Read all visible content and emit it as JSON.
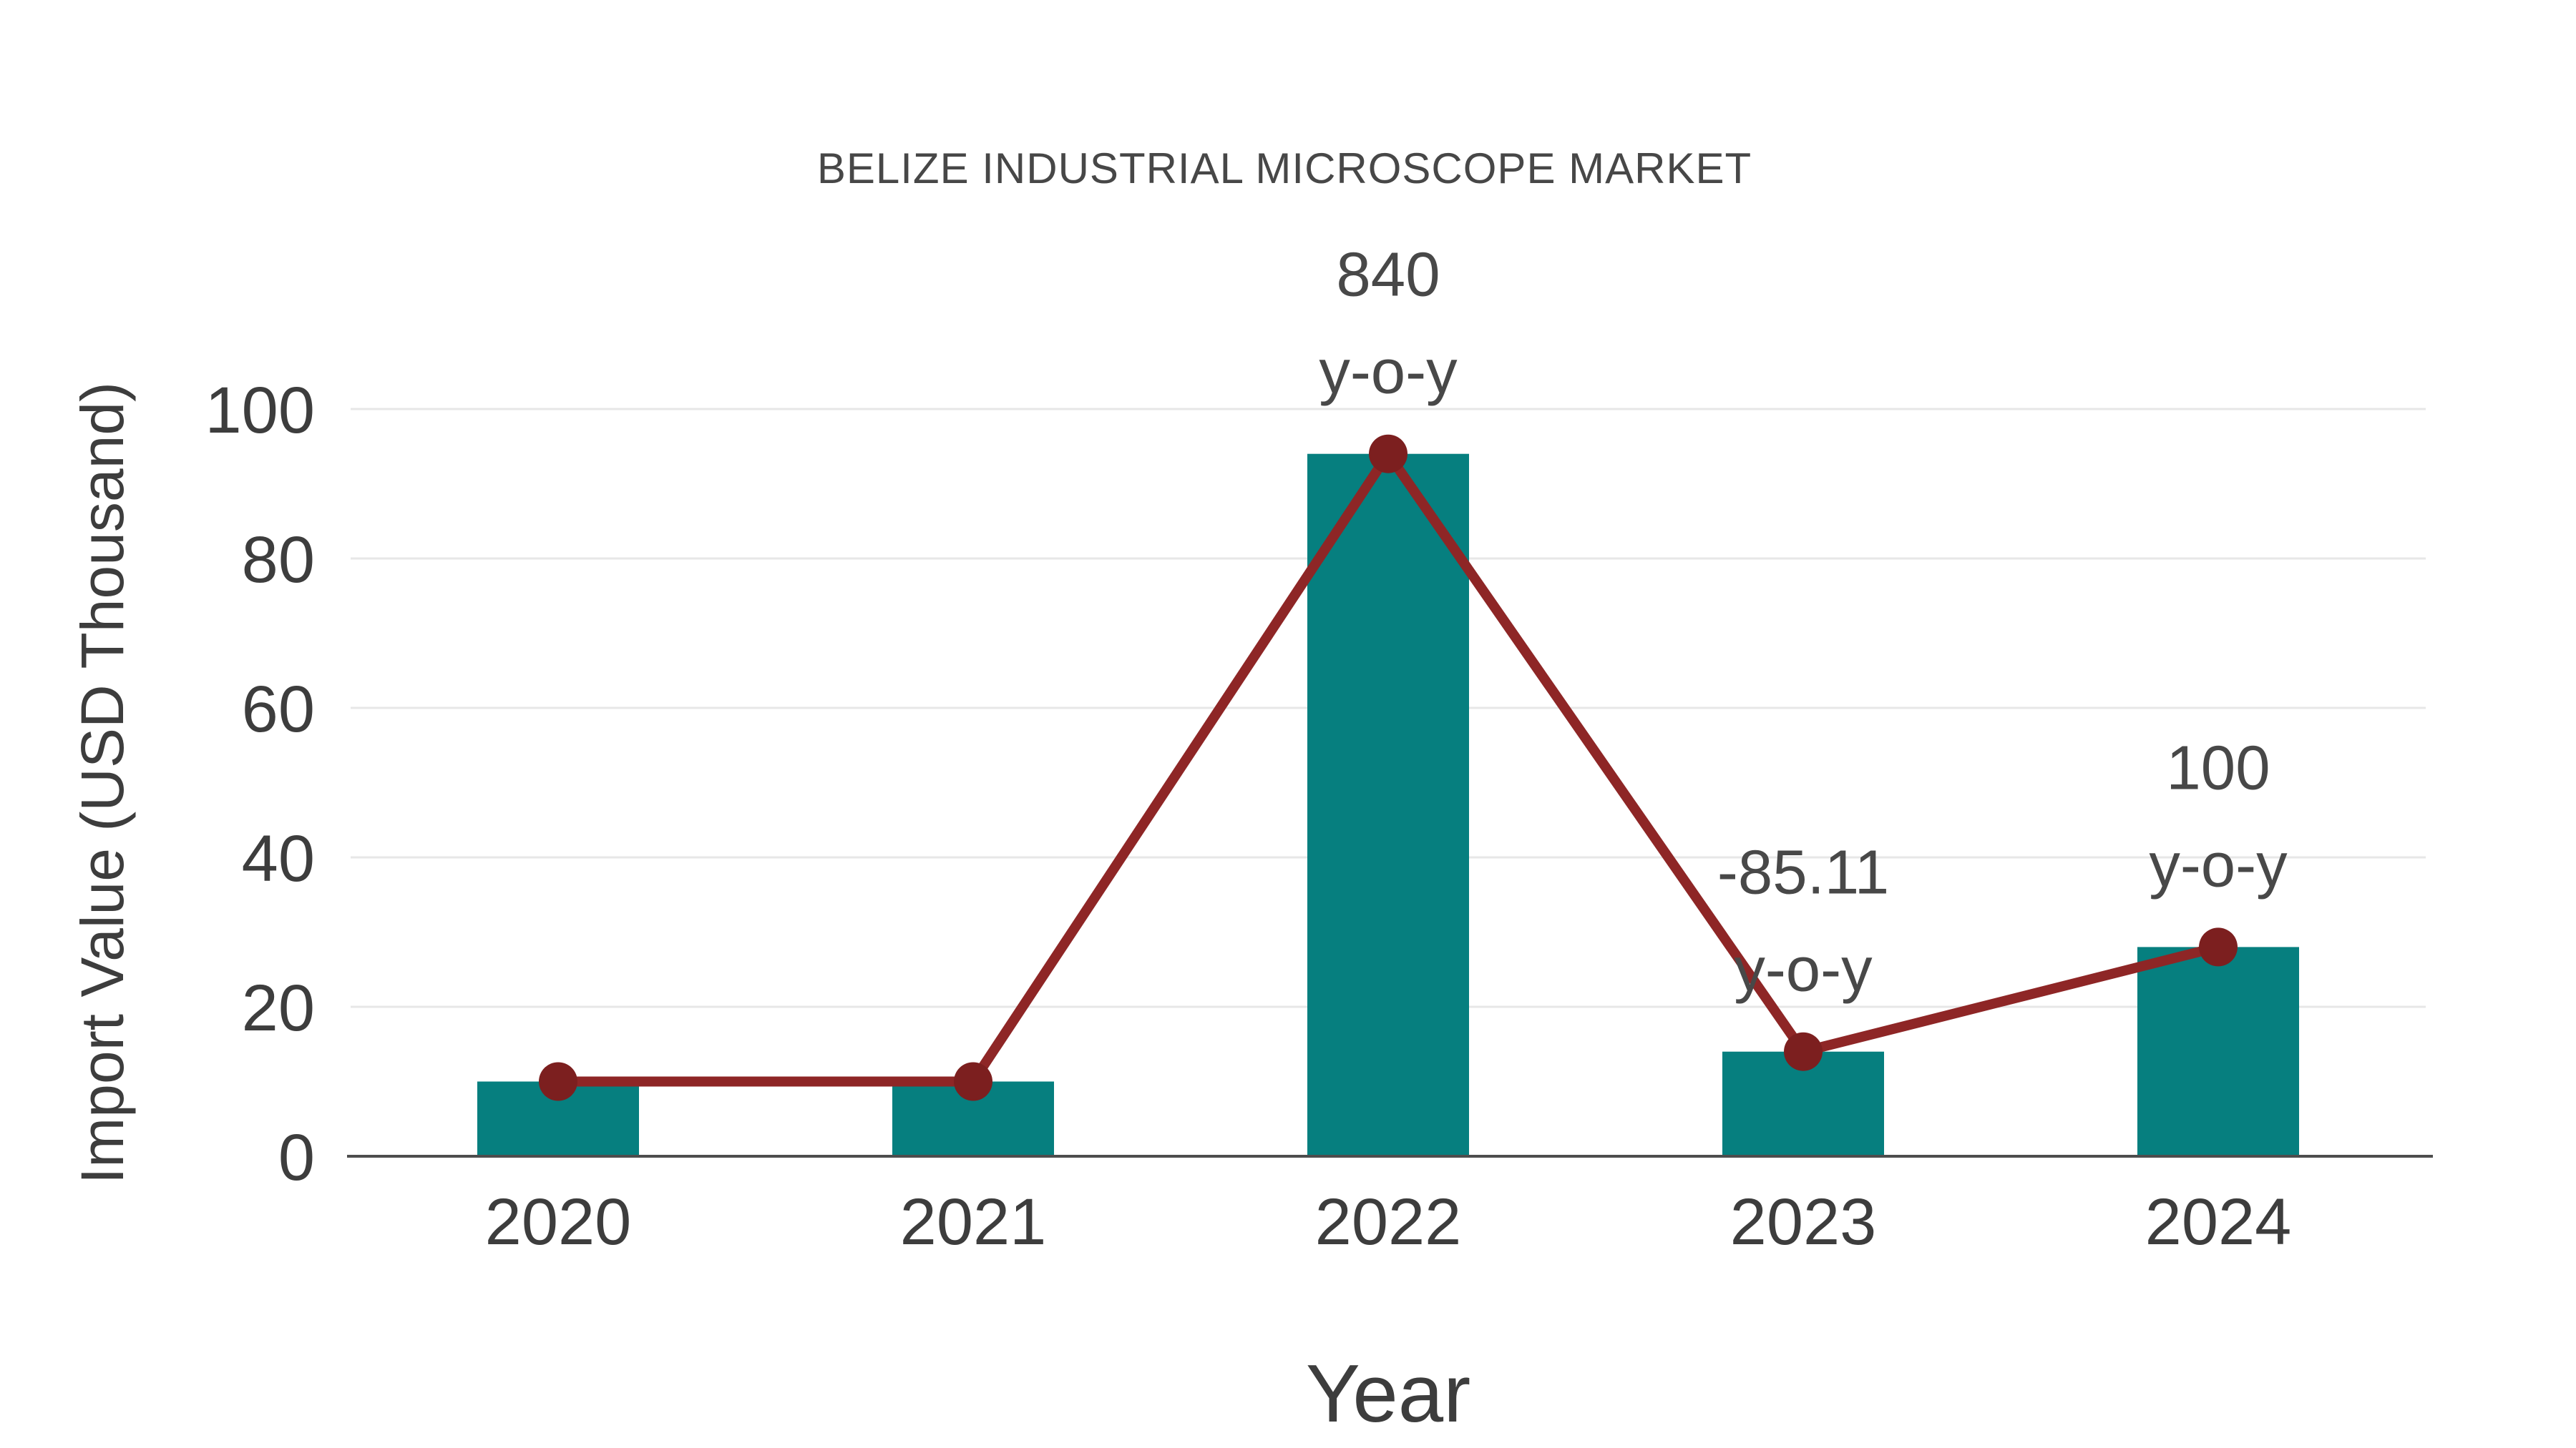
{
  "chart_data": {
    "type": "bar",
    "subtype": "bar-with-trend-line",
    "title": "BELIZE INDUSTRIAL MICROSCOPE MARKET",
    "xlabel": "Year",
    "ylabel": "Import Value (USD Thousand)",
    "categories": [
      "2020",
      "2021",
      "2022",
      "2023",
      "2024"
    ],
    "series": [
      {
        "name": "Import Value (USD Thousand)",
        "type": "bar",
        "values": [
          10,
          10,
          94,
          14,
          28
        ]
      },
      {
        "name": "Trend",
        "type": "line",
        "values": [
          10,
          10,
          94,
          14,
          28
        ]
      }
    ],
    "annotations": [
      {
        "category": "2022",
        "lines": [
          "840",
          "y-o-y"
        ]
      },
      {
        "category": "2023",
        "lines": [
          "-85.11",
          "y-o-y"
        ]
      },
      {
        "category": "2024",
        "lines": [
          "100",
          "y-o-y"
        ]
      }
    ],
    "yticks": [
      0,
      20,
      40,
      60,
      80,
      100
    ],
    "ylim": [
      0,
      100
    ],
    "grid": true,
    "legend": "none",
    "colors": {
      "background": "#ffffff",
      "bar": "#067f7f",
      "line": "#8e2626",
      "marker": "#7c1f1f",
      "grid": "#e7e7e7",
      "axis": "#4d4d4d",
      "tick_text": "#3d3d3d",
      "title_text": "#474747",
      "annotation_text": "#484848"
    }
  }
}
